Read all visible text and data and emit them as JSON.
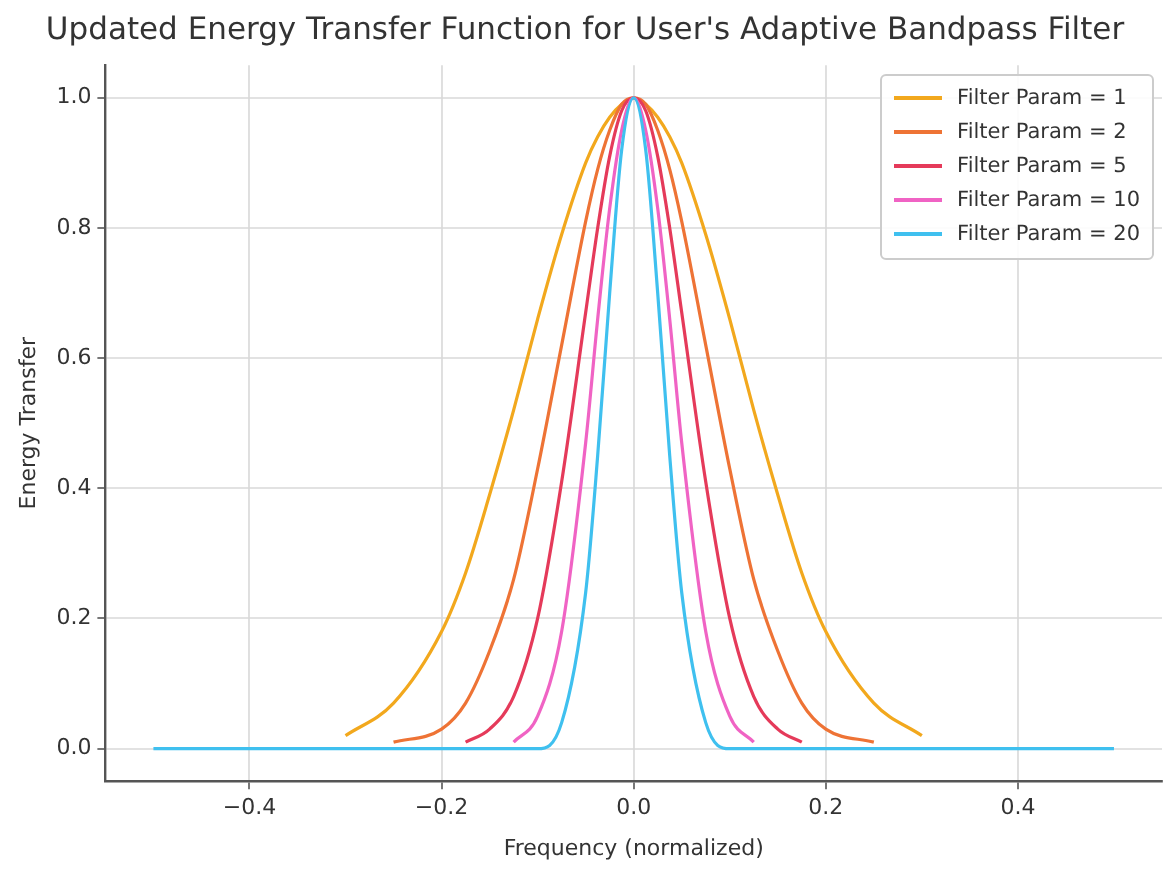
{
  "chart_data": {
    "type": "line",
    "title": "Updated Energy Transfer Function for User's Adaptive Bandpass Filter",
    "xlabel": "Frequency (normalized)",
    "ylabel": "Energy Transfer",
    "x": [
      -0.5,
      -0.4,
      -0.3,
      -0.25,
      -0.2,
      -0.175,
      -0.15,
      -0.125,
      -0.1,
      -0.075,
      -0.05,
      -0.0375,
      -0.025,
      -0.0125,
      0,
      0.0125,
      0.025,
      0.0375,
      0.05,
      0.075,
      0.1,
      0.125,
      0.15,
      0.175,
      0.2,
      0.25,
      0.3,
      0.4,
      0.5
    ],
    "series": [
      {
        "name": "Filter Param = 1",
        "color": "#f2a81d",
        "x": [
          -0.3,
          -0.25,
          -0.2,
          -0.175,
          -0.15,
          -0.125,
          -0.1,
          -0.075,
          -0.05,
          -0.0375,
          -0.025,
          -0.0125,
          0,
          0.0125,
          0.025,
          0.0375,
          0.05,
          0.075,
          0.1,
          0.125,
          0.15,
          0.175,
          0.2,
          0.25,
          0.3
        ],
        "values": [
          0.02,
          0.07,
          0.18,
          0.27,
          0.39,
          0.52,
          0.66,
          0.79,
          0.9,
          0.94,
          0.97,
          0.99,
          1,
          0.99,
          0.97,
          0.94,
          0.9,
          0.79,
          0.66,
          0.52,
          0.39,
          0.27,
          0.18,
          0.07,
          0.02
        ]
      },
      {
        "name": "Filter Param = 2",
        "color": "#ee7335",
        "x": [
          -0.25,
          -0.2,
          -0.175,
          -0.15,
          -0.125,
          -0.1,
          -0.075,
          -0.05,
          -0.0375,
          -0.025,
          -0.0125,
          0,
          0.0125,
          0.025,
          0.0375,
          0.05,
          0.075,
          0.1,
          0.125,
          0.15,
          0.175,
          0.2,
          0.25
        ],
        "values": [
          0.01,
          0.03,
          0.07,
          0.15,
          0.26,
          0.43,
          0.62,
          0.81,
          0.89,
          0.95,
          0.99,
          1,
          0.99,
          0.95,
          0.89,
          0.81,
          0.62,
          0.43,
          0.26,
          0.15,
          0.07,
          0.03,
          0.01
        ]
      },
      {
        "name": "Filter Param = 5",
        "color": "#e53a5a",
        "x": [
          -0.175,
          -0.15,
          -0.125,
          -0.1,
          -0.075,
          -0.05,
          -0.0375,
          -0.025,
          -0.0125,
          0,
          0.0125,
          0.025,
          0.0375,
          0.05,
          0.075,
          0.1,
          0.125,
          0.15,
          0.175
        ],
        "values": [
          0.01,
          0.03,
          0.08,
          0.2,
          0.41,
          0.67,
          0.8,
          0.91,
          0.98,
          1,
          0.98,
          0.91,
          0.8,
          0.67,
          0.41,
          0.2,
          0.08,
          0.03,
          0.01
        ]
      },
      {
        "name": "Filter Param = 10",
        "color": "#f063c4",
        "x": [
          -0.125,
          -0.1,
          -0.075,
          -0.05,
          -0.0375,
          -0.025,
          -0.0125,
          0,
          0.0125,
          0.025,
          0.0375,
          0.05,
          0.075,
          0.1,
          0.125
        ],
        "values": [
          0.01,
          0.05,
          0.18,
          0.47,
          0.66,
          0.83,
          0.95,
          1,
          0.95,
          0.83,
          0.66,
          0.47,
          0.18,
          0.05,
          0.01
        ]
      },
      {
        "name": "Filter Param = 20",
        "color": "#3fc0ef",
        "values": [
          0,
          0,
          0,
          0,
          0,
          0,
          0,
          0,
          0,
          0.04,
          0.24,
          0.45,
          0.7,
          0.92,
          1,
          0.92,
          0.7,
          0.45,
          0.24,
          0.04,
          0,
          0,
          0,
          0,
          0,
          0,
          0,
          0,
          0
        ]
      }
    ],
    "xlim": [
      -0.55,
      0.55
    ],
    "ylim": [
      -0.05,
      1.05
    ],
    "xticks": [
      {
        "value": -0.4,
        "label": "−0.4"
      },
      {
        "value": -0.2,
        "label": "−0.2"
      },
      {
        "value": 0,
        "label": "0.0"
      },
      0.2,
      0.4
    ],
    "yticks": [
      {
        "value": 0,
        "label": "0.0"
      },
      0.2,
      0.4,
      0.6,
      0.8,
      {
        "value": 1,
        "label": "1.0"
      }
    ],
    "grid": true,
    "legend": "top right",
    "marker": "none",
    "line_style": "solid"
  }
}
